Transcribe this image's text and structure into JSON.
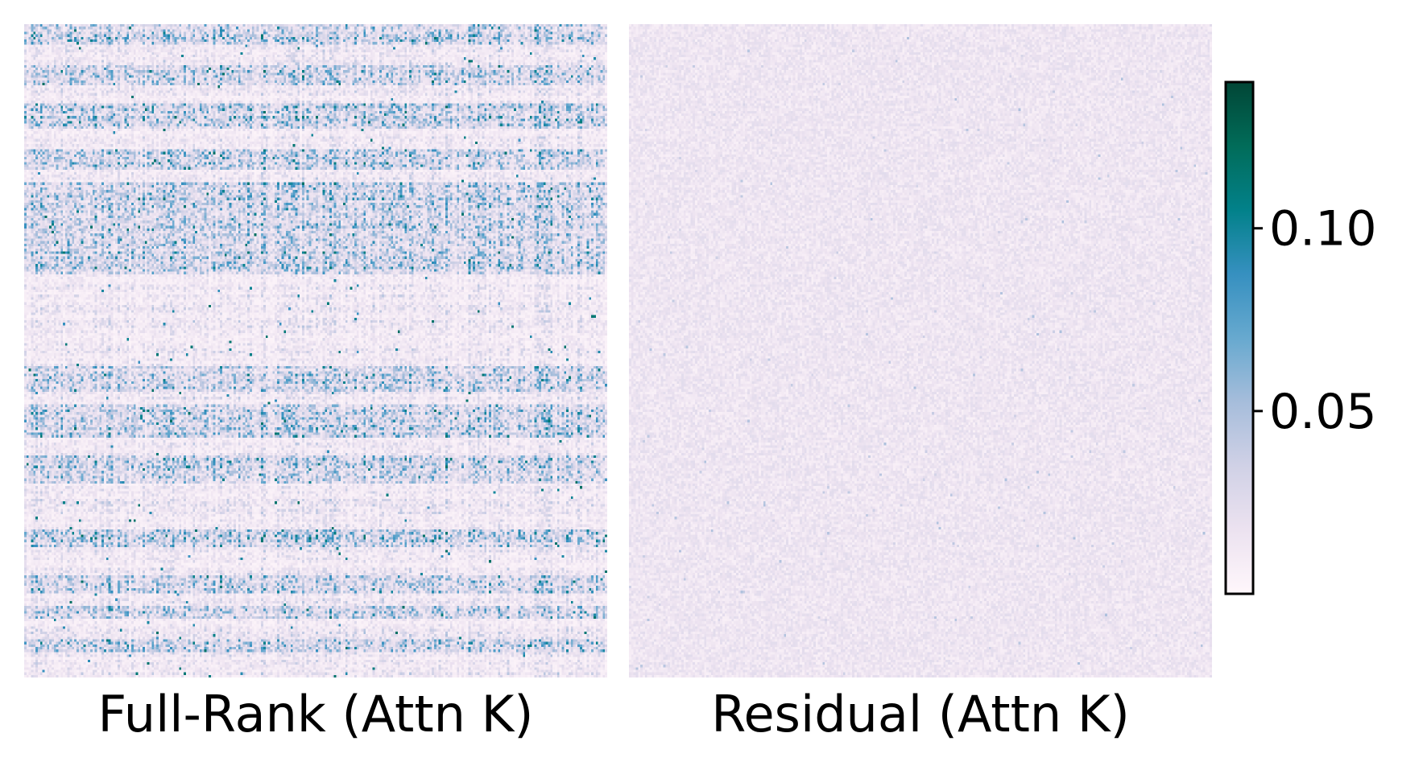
{
  "chart_data": {
    "type": "heatmap",
    "panels": [
      {
        "id": "full",
        "title": "Full-Rank (Attn K)",
        "grid": [
          256,
          256
        ],
        "value_summary": {
          "min": 0.0,
          "typical": 0.035,
          "max": 0.12
        },
        "structure": "row-banded",
        "high_activity_row_fractions": [
          [
            0.0,
            0.03
          ],
          [
            0.06,
            0.09
          ],
          [
            0.12,
            0.16
          ],
          [
            0.19,
            0.22
          ],
          [
            0.24,
            0.38
          ],
          [
            0.52,
            0.56
          ],
          [
            0.58,
            0.63
          ],
          [
            0.66,
            0.7
          ],
          [
            0.77,
            0.8
          ],
          [
            0.84,
            0.87
          ],
          [
            0.89,
            0.91
          ],
          [
            0.94,
            0.96
          ]
        ]
      },
      {
        "id": "residual",
        "title": "Residual (Attn K)",
        "grid": [
          256,
          256
        ],
        "value_summary": {
          "min": 0.0,
          "typical": 0.015,
          "max": 0.05
        },
        "structure": "uniform-noise"
      }
    ],
    "colorbar": {
      "cmap": "PuBuGn",
      "colors": [
        "#fff7fb",
        "#ece2f0",
        "#d0d1e6",
        "#a6bddb",
        "#67a9cf",
        "#3690c0",
        "#02818a",
        "#016c59",
        "#014636"
      ],
      "vmin": 0.0,
      "vmax": 0.14,
      "ticks": [
        0.05,
        0.1
      ],
      "tick_labels": [
        "0.05",
        "0.10"
      ]
    },
    "xlabel": "",
    "ylabel": "",
    "grid": false
  }
}
